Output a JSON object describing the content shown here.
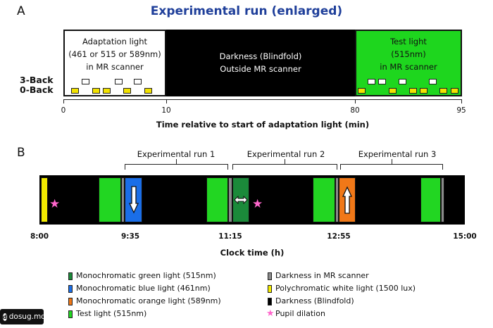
{
  "panel_a": {
    "letter": "A",
    "title": "Experimental run (enlarged)",
    "segments": {
      "adaptation": {
        "line1": "Adaptation light",
        "line2": "(461 or 515 or 589nm)",
        "line3": "in MR scanner"
      },
      "darkness": {
        "line1": "Darkness (Blindfold)",
        "line2": "Outside MR scanner"
      },
      "test": {
        "line1": "Test light",
        "line2": "(515nm)",
        "line3": "in MR scanner"
      }
    },
    "row_labels": {
      "three_back": "3-Back",
      "zero_back": "0-Back"
    },
    "ticks": [
      "0",
      "10",
      "80",
      "95"
    ],
    "axis_title": "Time relative to start of adaptation light (min)"
  },
  "panel_b": {
    "letter": "B",
    "runs": [
      "Experimental run 1",
      "Experimental run 2",
      "Experimental run 3"
    ],
    "ticks": [
      "8:00",
      "9:35",
      "11:15",
      "12:55",
      "15:00"
    ],
    "axis_title": "Clock time (h)",
    "legend": [
      {
        "label": "Monochromatic green light (515nm)",
        "color": "#1b8a3a"
      },
      {
        "label": "Monochromatic  blue light (461nm)",
        "color": "#1a6ee8"
      },
      {
        "label": "Monochromatic orange light (589nm)",
        "color": "#f07818"
      },
      {
        "label": "Test light (515nm)",
        "color": "#22d622"
      },
      {
        "label": "Darkness in MR scanner",
        "color": "#8a8a8a"
      },
      {
        "label": "Polychromatic white light (1500 lux)",
        "color": "#f2ea00"
      },
      {
        "label": "Darkness (Blindfold)",
        "color": "#000000"
      },
      {
        "label": "Pupil dilation",
        "icon": "star-icon",
        "color": "#ff66cc"
      }
    ]
  },
  "watermark": {
    "text": "dosug.md",
    "icon": "dosug-logo-icon"
  }
}
